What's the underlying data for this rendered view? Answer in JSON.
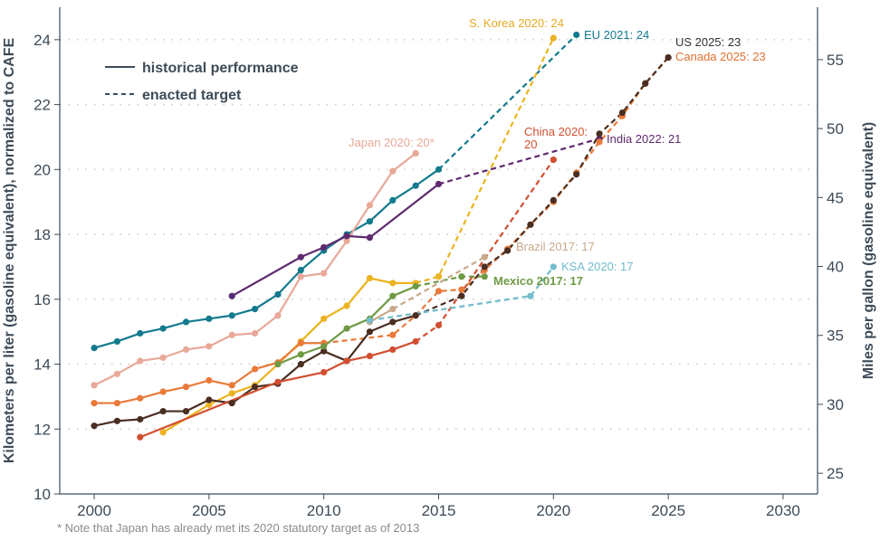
{
  "chart_data": {
    "type": "line",
    "title": "",
    "xlabel": "",
    "ylabel": "Kilometers per liter (gasoline equivalent), normalized to CAFE",
    "y2label": "Miles per gallon (gasoline equivalent)",
    "xlim": [
      1998.5,
      2031.5
    ],
    "ylim": [
      10,
      25
    ],
    "y2lim": [
      23.5,
      58.8
    ],
    "xticks": [
      "2000",
      "2005",
      "2010",
      "2015",
      "2020",
      "2025",
      "2030"
    ],
    "yticks": [
      "10",
      "12",
      "14",
      "16",
      "18",
      "20",
      "22",
      "24"
    ],
    "y2ticks": [
      "25",
      "30",
      "35",
      "40",
      "45",
      "50",
      "55"
    ],
    "grid": "horizontal dotted",
    "legend": {
      "position": "top-left",
      "entries": [
        {
          "label": "historical performance",
          "style": "solid"
        },
        {
          "label": "enacted target",
          "style": "dashed"
        }
      ]
    },
    "footnote": "* Note that Japan has already met its 2020 statutory target as of 2013",
    "series": [
      {
        "name": "EU",
        "color": "#137a8e",
        "label": "EU 2021: 24",
        "historical": [
          [
            2000,
            14.5
          ],
          [
            2001,
            14.7
          ],
          [
            2002,
            14.95
          ],
          [
            2003,
            15.1
          ],
          [
            2004,
            15.3
          ],
          [
            2005,
            15.4
          ],
          [
            2006,
            15.5
          ],
          [
            2007,
            15.7
          ],
          [
            2008,
            16.15
          ],
          [
            2009,
            16.9
          ],
          [
            2010,
            17.5
          ],
          [
            2011,
            18.0
          ],
          [
            2012,
            18.4
          ],
          [
            2013,
            19.05
          ],
          [
            2014,
            19.5
          ],
          [
            2015,
            20.0
          ]
        ],
        "target": [
          [
            2015,
            20.0
          ],
          [
            2021,
            24.15
          ]
        ]
      },
      {
        "name": "Japan",
        "color": "#e8a898",
        "label": "Japan 2020: 20*",
        "historical": [
          [
            2000,
            13.35
          ],
          [
            2001,
            13.7
          ],
          [
            2002,
            14.1
          ],
          [
            2003,
            14.2
          ],
          [
            2004,
            14.45
          ],
          [
            2005,
            14.55
          ],
          [
            2006,
            14.9
          ],
          [
            2007,
            14.95
          ],
          [
            2008,
            15.5
          ],
          [
            2009,
            16.7
          ],
          [
            2010,
            16.8
          ],
          [
            2011,
            17.8
          ],
          [
            2012,
            18.9
          ],
          [
            2013,
            19.95
          ],
          [
            2014,
            20.5
          ]
        ],
        "target": []
      },
      {
        "name": "India",
        "color": "#5e2a6e",
        "label": "India 2022: 21",
        "historical": [
          [
            2006,
            16.1
          ],
          [
            2009,
            17.3
          ],
          [
            2010,
            17.6
          ],
          [
            2011,
            17.95
          ],
          [
            2012,
            17.9
          ],
          [
            2015,
            19.55
          ]
        ],
        "target": [
          [
            2015,
            19.55
          ],
          [
            2022,
            20.95
          ]
        ]
      },
      {
        "name": "S. Korea",
        "color": "#ebb320",
        "label": "S. Korea 2020: 24",
        "historical": [
          [
            2003,
            11.9
          ],
          [
            2005,
            12.75
          ],
          [
            2006,
            13.1
          ],
          [
            2007,
            13.35
          ],
          [
            2008,
            14.0
          ],
          [
            2009,
            14.7
          ],
          [
            2010,
            15.4
          ],
          [
            2011,
            15.8
          ],
          [
            2012,
            16.65
          ],
          [
            2013,
            16.5
          ],
          [
            2014,
            16.5
          ]
        ],
        "target": [
          [
            2014,
            16.5
          ],
          [
            2015,
            16.7
          ],
          [
            2020,
            24.05
          ]
        ]
      },
      {
        "name": "Canada",
        "color": "#e87a3a",
        "label": "Canada 2025: 23",
        "historical": [
          [
            2000,
            12.8
          ],
          [
            2001,
            12.8
          ],
          [
            2002,
            12.95
          ],
          [
            2003,
            13.15
          ],
          [
            2004,
            13.3
          ],
          [
            2005,
            13.5
          ],
          [
            2006,
            13.35
          ],
          [
            2007,
            13.85
          ],
          [
            2008,
            14.05
          ],
          [
            2009,
            14.65
          ],
          [
            2010,
            14.65
          ]
        ],
        "target": [
          [
            2010,
            14.65
          ],
          [
            2013,
            14.9
          ],
          [
            2014,
            15.5
          ],
          [
            2015,
            16.25
          ],
          [
            2016,
            16.3
          ],
          [
            2017,
            16.9
          ],
          [
            2018,
            17.55
          ],
          [
            2019,
            18.3
          ],
          [
            2020,
            19.0
          ],
          [
            2021,
            19.9
          ],
          [
            2022,
            20.85
          ],
          [
            2023,
            21.65
          ],
          [
            2024,
            22.65
          ],
          [
            2025,
            23.45
          ]
        ]
      },
      {
        "name": "US",
        "color": "#4a2e22",
        "label": "US 2025: 23",
        "historical": [
          [
            2000,
            12.1
          ],
          [
            2001,
            12.25
          ],
          [
            2002,
            12.3
          ],
          [
            2003,
            12.55
          ],
          [
            2004,
            12.55
          ],
          [
            2005,
            12.9
          ],
          [
            2006,
            12.8
          ],
          [
            2007,
            13.3
          ],
          [
            2008,
            13.4
          ],
          [
            2009,
            14.0
          ],
          [
            2010,
            14.4
          ],
          [
            2011,
            14.1
          ],
          [
            2012,
            15.0
          ],
          [
            2013,
            15.3
          ],
          [
            2014,
            15.5
          ]
        ],
        "target": [
          [
            2014,
            15.5
          ],
          [
            2016,
            16.1
          ],
          [
            2017,
            17.0
          ],
          [
            2018,
            17.5
          ],
          [
            2019,
            18.3
          ],
          [
            2020,
            19.05
          ],
          [
            2021,
            19.85
          ],
          [
            2022,
            21.1
          ],
          [
            2023,
            21.75
          ],
          [
            2024,
            22.65
          ],
          [
            2025,
            23.45
          ]
        ]
      },
      {
        "name": "China",
        "color": "#d14f30",
        "label": "China 2020: 20",
        "historical": [
          [
            2002,
            11.75
          ],
          [
            2008,
            13.45
          ],
          [
            2010,
            13.75
          ],
          [
            2011,
            14.1
          ],
          [
            2012,
            14.25
          ],
          [
            2013,
            14.45
          ],
          [
            2014,
            14.7
          ]
        ],
        "target": [
          [
            2014,
            14.7
          ],
          [
            2015,
            15.2
          ],
          [
            2020,
            20.3
          ]
        ]
      },
      {
        "name": "Mexico",
        "color": "#6e9a44",
        "label": "Mexico 2017: 17",
        "historical": [
          [
            2008,
            14.0
          ],
          [
            2009,
            14.3
          ],
          [
            2010,
            14.55
          ],
          [
            2011,
            15.1
          ],
          [
            2012,
            15.4
          ],
          [
            2013,
            16.1
          ],
          [
            2014,
            16.4
          ]
        ],
        "target": [
          [
            2014,
            16.4
          ],
          [
            2016,
            16.7
          ],
          [
            2017,
            16.7
          ]
        ]
      },
      {
        "name": "Brazil",
        "color": "#c9a98a",
        "label": "Brazil 2017: 17",
        "historical": [
          [
            2012,
            15.3
          ],
          [
            2013,
            15.7
          ]
        ],
        "target": [
          [
            2013,
            15.7
          ],
          [
            2017,
            17.3
          ]
        ]
      },
      {
        "name": "KSA",
        "color": "#72bccb",
        "label": "KSA 2020: 17",
        "historical": [
          [
            2012,
            15.35
          ]
        ],
        "target": [
          [
            2012,
            15.35
          ],
          [
            2019,
            16.1
          ],
          [
            2020,
            17.0
          ]
        ]
      }
    ]
  },
  "labels": {
    "footnote": "* Note that Japan has already met its 2020 statutory target as of 2013",
    "legend_historical": "historical performance",
    "legend_target": "enacted target",
    "ylabel": "Kilometers per liter (gasoline equivalent), normalized to CAFE",
    "y2label": "Miles per gallon (gasoline equivalent)",
    "anno_skorea": "S. Korea 2020: 24",
    "anno_eu": "EU 2021: 24",
    "anno_us": "US 2025: 23",
    "anno_canada": "Canada 2025: 23",
    "anno_japan": "Japan 2020: 20*",
    "anno_china_1": "China 2020:",
    "anno_china_2": "20",
    "anno_india": "India 2022: 21",
    "anno_brazil": "Brazil 2017: 17",
    "anno_ksa": "KSA 2020: 17",
    "anno_mexico": "Mexico 2017: 17"
  }
}
